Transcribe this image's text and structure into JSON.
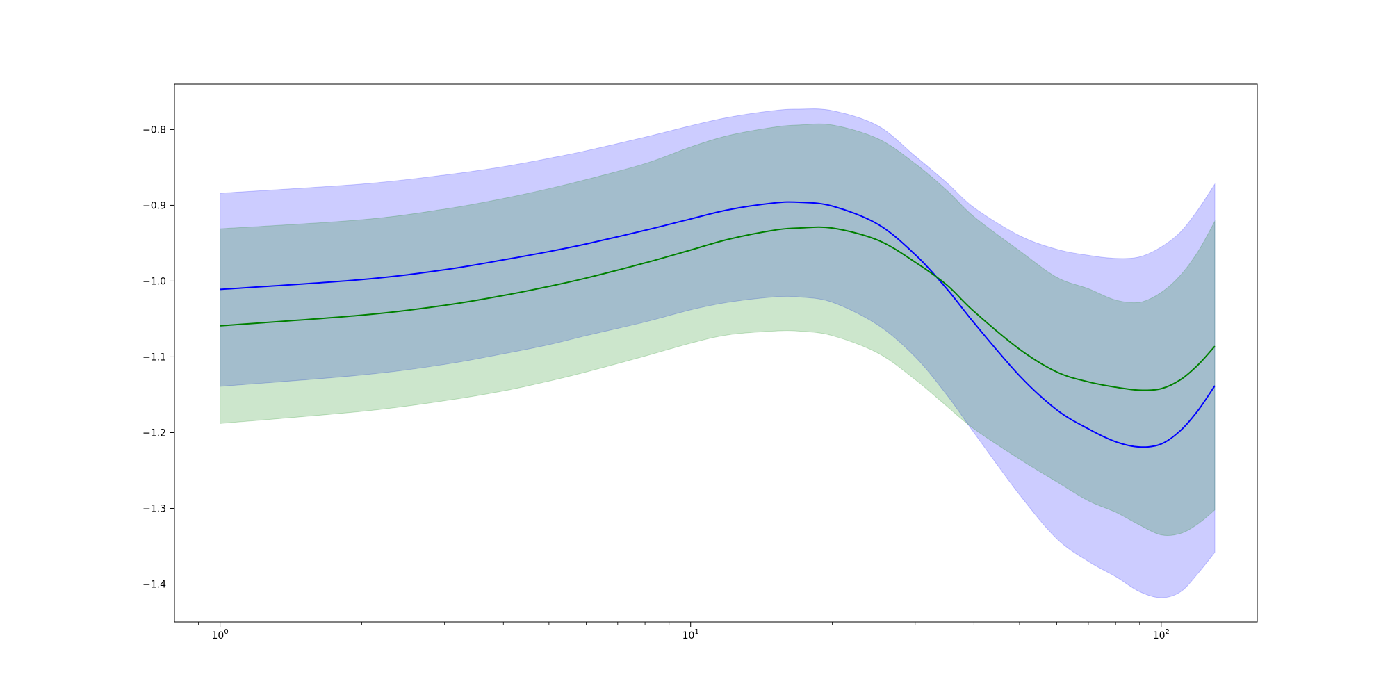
{
  "chart_data": {
    "type": "line",
    "title": "",
    "xlabel": "",
    "ylabel": "",
    "xscale": "log",
    "xlim": [
      0.8,
      160
    ],
    "ylim": [
      -1.45,
      -0.74
    ],
    "grid": false,
    "legend": "none",
    "x_ticks": [
      {
        "base": "10",
        "exp": "0",
        "value": 1
      },
      {
        "base": "10",
        "exp": "1",
        "value": 10
      },
      {
        "base": "10",
        "exp": "2",
        "value": 100
      }
    ],
    "y_ticks": [
      {
        "label": "−0.8",
        "value": -0.8
      },
      {
        "label": "−0.9",
        "value": -0.9
      },
      {
        "label": "−1.0",
        "value": -1.0
      },
      {
        "label": "−1.1",
        "value": -1.1
      },
      {
        "label": "−1.2",
        "value": -1.2
      },
      {
        "label": "−1.3",
        "value": -1.3
      },
      {
        "label": "−1.4",
        "value": -1.4
      }
    ],
    "x": [
      1,
      2,
      3,
      4,
      5,
      6,
      8,
      10,
      12,
      15,
      17,
      20,
      25,
      30,
      35,
      40,
      50,
      60,
      70,
      80,
      90,
      100,
      110,
      120,
      130
    ],
    "series": [
      {
        "color": "#0000ff",
        "band_color": "#0000ff",
        "band_opacity": 0.2,
        "mean": [
          -1.011,
          -0.998,
          -0.985,
          -0.972,
          -0.961,
          -0.951,
          -0.933,
          -0.918,
          -0.906,
          -0.897,
          -0.896,
          -0.901,
          -0.925,
          -0.965,
          -1.01,
          -1.055,
          -1.125,
          -1.17,
          -1.195,
          -1.212,
          -1.219,
          -1.215,
          -1.197,
          -1.17,
          -1.138
        ],
        "upper": [
          -0.884,
          -0.872,
          -0.86,
          -0.849,
          -0.838,
          -0.828,
          -0.81,
          -0.795,
          -0.784,
          -0.775,
          -0.773,
          -0.775,
          -0.795,
          -0.835,
          -0.87,
          -0.903,
          -0.94,
          -0.958,
          -0.966,
          -0.97,
          -0.968,
          -0.955,
          -0.935,
          -0.905,
          -0.872
        ],
        "lower": [
          -1.139,
          -1.124,
          -1.11,
          -1.096,
          -1.084,
          -1.072,
          -1.054,
          -1.038,
          -1.028,
          -1.021,
          -1.021,
          -1.028,
          -1.058,
          -1.1,
          -1.15,
          -1.2,
          -1.282,
          -1.34,
          -1.37,
          -1.39,
          -1.41,
          -1.418,
          -1.41,
          -1.385,
          -1.358
        ]
      },
      {
        "color": "#008000",
        "band_color": "#008000",
        "band_opacity": 0.2,
        "mean": [
          -1.059,
          -1.045,
          -1.032,
          -1.019,
          -1.007,
          -0.996,
          -0.976,
          -0.959,
          -0.945,
          -0.933,
          -0.93,
          -0.93,
          -0.946,
          -0.975,
          -1.005,
          -1.04,
          -1.09,
          -1.12,
          -1.133,
          -1.14,
          -1.144,
          -1.142,
          -1.13,
          -1.11,
          -1.086
        ],
        "upper": [
          -0.931,
          -0.919,
          -0.905,
          -0.891,
          -0.878,
          -0.866,
          -0.845,
          -0.823,
          -0.808,
          -0.797,
          -0.794,
          -0.794,
          -0.812,
          -0.845,
          -0.88,
          -0.915,
          -0.96,
          -0.995,
          -1.01,
          -1.025,
          -1.028,
          -1.015,
          -0.992,
          -0.96,
          -0.921
        ],
        "lower": [
          -1.188,
          -1.172,
          -1.158,
          -1.145,
          -1.132,
          -1.12,
          -1.099,
          -1.082,
          -1.071,
          -1.066,
          -1.066,
          -1.072,
          -1.095,
          -1.13,
          -1.165,
          -1.195,
          -1.235,
          -1.265,
          -1.29,
          -1.305,
          -1.322,
          -1.335,
          -1.333,
          -1.32,
          -1.302
        ]
      }
    ]
  }
}
